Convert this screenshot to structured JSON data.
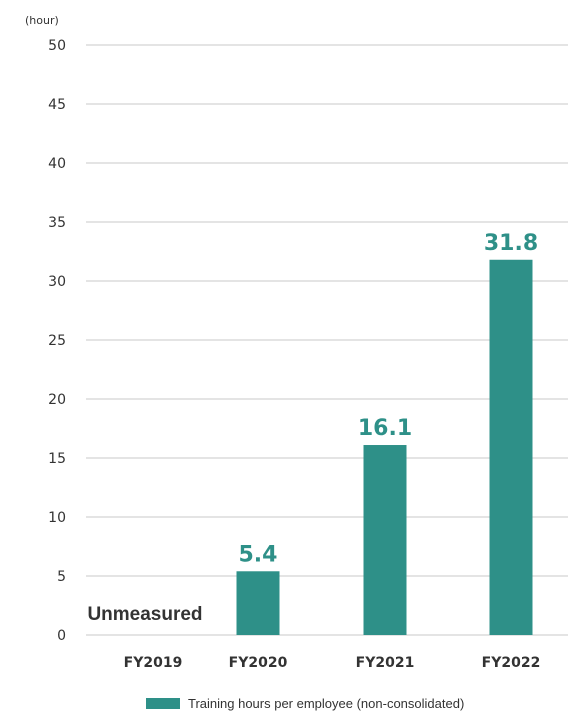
{
  "chart_data": {
    "type": "bar",
    "y_unit": "(hour)",
    "categories": [
      "FY2019",
      "FY2020",
      "FY2021",
      "FY2022"
    ],
    "series": [
      {
        "name": "Training hours per employee (non-consolidated)",
        "values": [
          null,
          5.4,
          16.1,
          31.8
        ],
        "data_labels": [
          "",
          "5.4",
          "16.1",
          "31.8"
        ],
        "color": "#2e9088"
      }
    ],
    "annotations": [
      {
        "category": "FY2019",
        "text": "Unmeasured"
      }
    ],
    "ylim": [
      0,
      50
    ],
    "yticks": [
      "0",
      "5",
      "10",
      "15",
      "20",
      "25",
      "30",
      "35",
      "40",
      "45",
      "50"
    ],
    "grid": true,
    "legend_position": "bottom-right"
  }
}
